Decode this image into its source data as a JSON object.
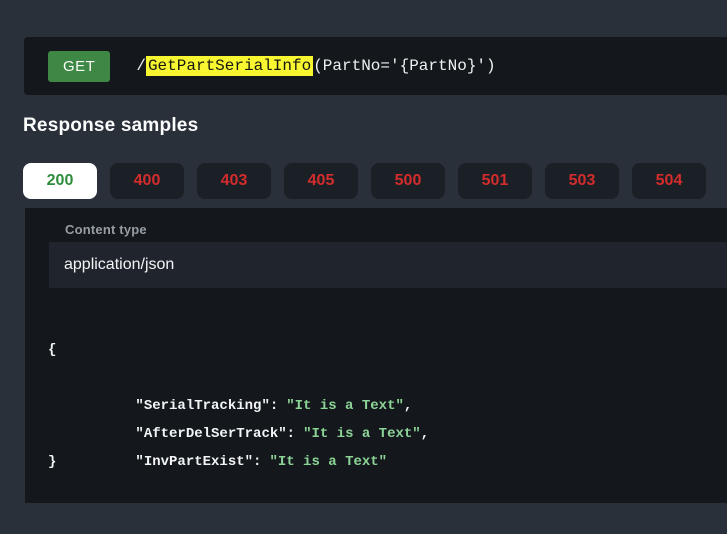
{
  "endpoint": {
    "method": "GET",
    "path_prefix": "/",
    "path_highlight": "GetPartSerialInfo",
    "path_suffix": "(PartNo='{PartNo}')"
  },
  "response_samples": {
    "title": "Response samples",
    "tabs": [
      {
        "label": "200",
        "state": "success-active"
      },
      {
        "label": "400",
        "state": "error"
      },
      {
        "label": "403",
        "state": "error"
      },
      {
        "label": "405",
        "state": "error"
      },
      {
        "label": "500",
        "state": "error"
      },
      {
        "label": "501",
        "state": "error"
      },
      {
        "label": "503",
        "state": "error"
      },
      {
        "label": "504",
        "state": "error"
      }
    ]
  },
  "content_type": {
    "label": "Content type",
    "value": "application/json"
  },
  "code_sample": {
    "open_brace": "{",
    "close_brace": "}",
    "entries": [
      {
        "key": "\"SerialTracking\":",
        "value": "\"It is a Text\"",
        "separator": ","
      },
      {
        "key": "\"AfterDelSerTrack\":",
        "value": "\"It is a Text\"",
        "separator": ","
      },
      {
        "key": "\"InvPartExist\":",
        "value": "\"It is a Text\"",
        "separator": ""
      }
    ]
  },
  "colors": {
    "page_background": "#2a3039",
    "panel_dark": "#14181d",
    "method_badge_green": "#3e8744",
    "success_green": "#2f8c3c",
    "error_red": "#d32c2c",
    "highlight_yellow": "#f7f631",
    "json_string_green": "#8cd396",
    "active_tab_background": "#ffffff",
    "inactive_tab_background": "#1b2026",
    "content_type_box": "#20252d"
  }
}
